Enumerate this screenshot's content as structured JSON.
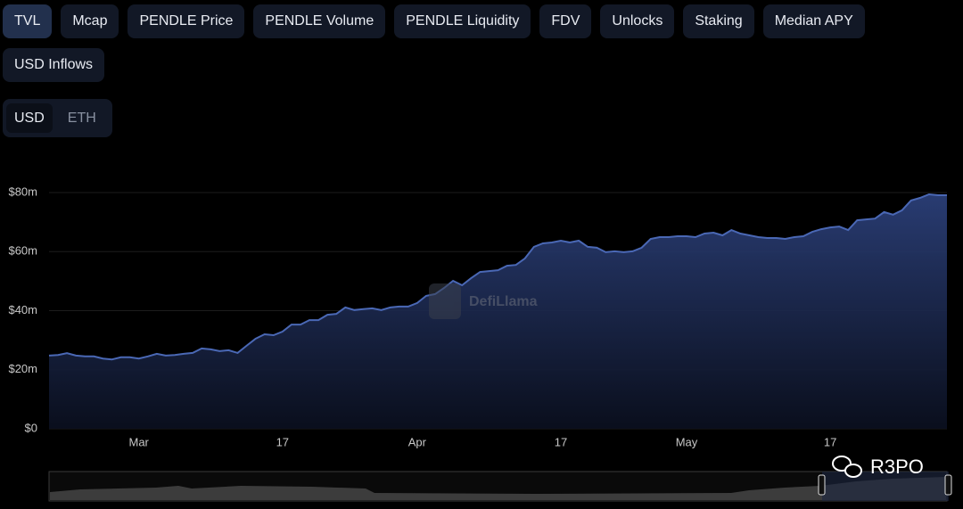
{
  "tabs": [
    "TVL",
    "Mcap",
    "PENDLE Price",
    "PENDLE Volume",
    "PENDLE Liquidity",
    "FDV",
    "Unlocks",
    "Staking",
    "Median APY",
    "USD Inflows"
  ],
  "active_tab": 0,
  "currencies": [
    "USD",
    "ETH"
  ],
  "active_currency": 0,
  "watermark": "DefiLlama",
  "badge": "R3PO",
  "chart_data": {
    "type": "area",
    "color": "#4a68b5",
    "grid": true,
    "categories": [
      null,
      null,
      null,
      null,
      null,
      null,
      null,
      null,
      null,
      null,
      "Mar",
      null,
      null,
      null,
      null,
      null,
      null,
      null,
      null,
      null,
      null,
      null,
      null,
      null,
      null,
      null,
      "17",
      null,
      null,
      null,
      null,
      null,
      null,
      null,
      null,
      null,
      null,
      null,
      null,
      null,
      null,
      "Apr",
      null,
      null,
      null,
      null,
      null,
      null,
      null,
      null,
      null,
      null,
      null,
      null,
      null,
      null,
      null,
      "17",
      null,
      null,
      null,
      null,
      null,
      null,
      null,
      null,
      null,
      null,
      null,
      null,
      null,
      "May",
      null,
      null,
      null,
      null,
      null,
      null,
      null,
      null,
      null,
      null,
      null,
      null,
      null,
      null,
      null,
      "17",
      null,
      null,
      null,
      null,
      null,
      null,
      null,
      null,
      null,
      null,
      null,
      null,
      null
    ],
    "values": [
      24.8,
      25.0,
      25.6,
      24.8,
      24.5,
      24.5,
      23.8,
      23.5,
      24.2,
      24.2,
      23.8,
      24.5,
      25.4,
      24.8,
      25.0,
      25.4,
      25.7,
      27.2,
      26.9,
      26.3,
      26.6,
      25.7,
      28.1,
      30.5,
      32.0,
      31.7,
      32.9,
      35.3,
      35.3,
      36.8,
      36.8,
      38.6,
      38.9,
      41.1,
      40.2,
      40.5,
      40.8,
      40.2,
      41.1,
      41.4,
      41.4,
      42.6,
      45.0,
      45.6,
      47.7,
      50.1,
      48.6,
      51.0,
      53.1,
      53.4,
      53.7,
      55.2,
      55.5,
      57.7,
      61.6,
      62.8,
      63.1,
      63.7,
      63.1,
      63.7,
      61.6,
      61.3,
      59.8,
      60.1,
      59.8,
      60.1,
      61.3,
      64.3,
      64.9,
      64.9,
      65.2,
      65.2,
      64.9,
      66.1,
      66.4,
      65.5,
      67.3,
      66.1,
      65.5,
      64.9,
      64.6,
      64.6,
      64.3,
      64.9,
      65.2,
      66.7,
      67.6,
      68.2,
      68.5,
      67.3,
      70.6,
      70.9,
      71.2,
      73.4,
      72.5,
      74.0,
      77.3,
      78.2,
      79.4,
      79.1,
      79.1
    ],
    "ylim": [
      0,
      80
    ],
    "yticks": [
      {
        "value": 0,
        "label": "$0"
      },
      {
        "value": 20,
        "label": "$20m"
      },
      {
        "value": 40,
        "label": "$40m"
      },
      {
        "value": 60,
        "label": "$60m"
      },
      {
        "value": 80,
        "label": "$80m"
      }
    ]
  }
}
